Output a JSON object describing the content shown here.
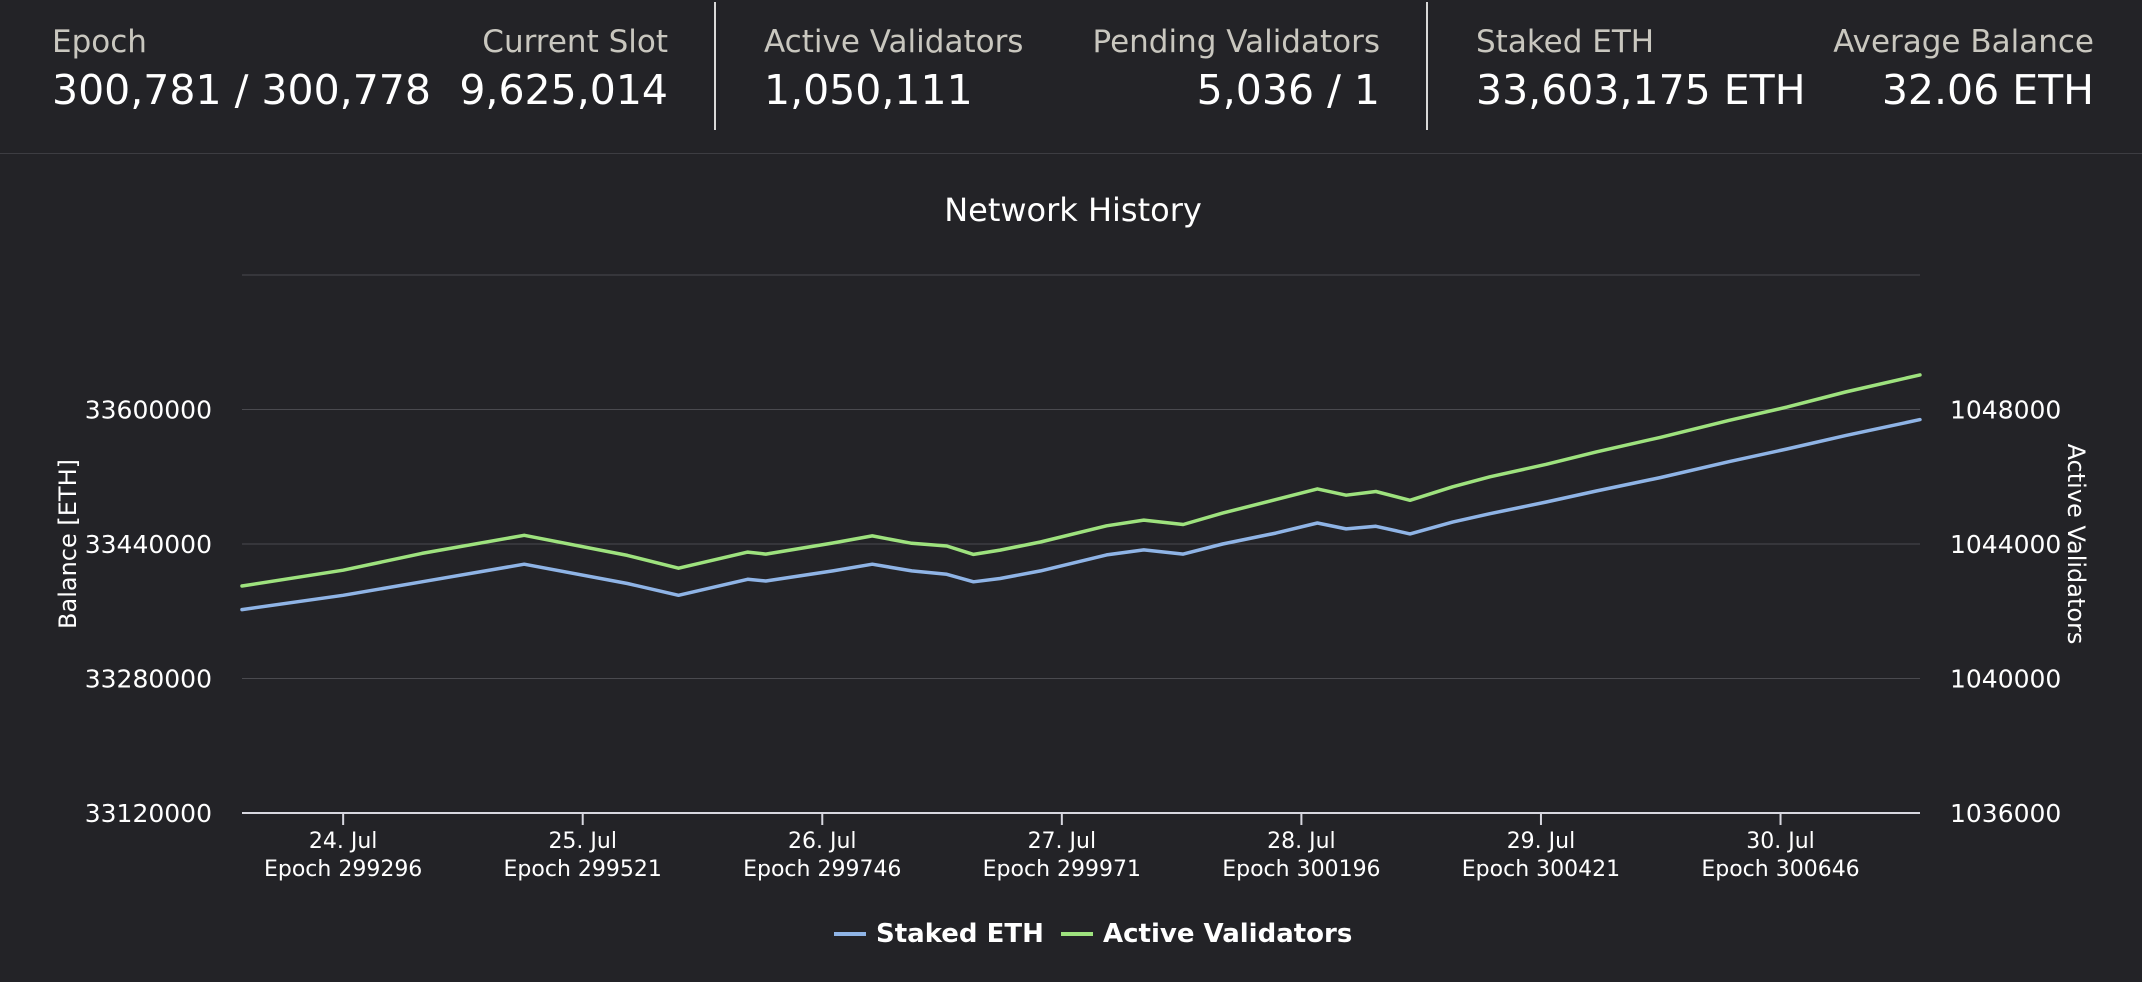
{
  "stats": {
    "epoch": {
      "label": "Epoch",
      "value": "300,781 / 300,778"
    },
    "current_slot": {
      "label": "Current Slot",
      "value": "9,625,014"
    },
    "active_validators": {
      "label": "Active Validators",
      "value": "1,050,111"
    },
    "pending_validators": {
      "label": "Pending Validators",
      "value": "5,036 / 1"
    },
    "staked_eth": {
      "label": "Staked ETH",
      "value": "33,603,175 ETH"
    },
    "average_balance": {
      "label": "Average Balance",
      "value": "32.06 ETH"
    }
  },
  "colors": {
    "background": "#232327",
    "staked_eth": "#8fb4e6",
    "active_validators": "#9ee27e",
    "grid": "#4a4a4f"
  },
  "chart_data": {
    "type": "line",
    "title": "Network History",
    "y_left": {
      "label": "Balance [ETH]",
      "ticks": [
        "33120000",
        "33280000",
        "33440000",
        "33600000"
      ],
      "range": [
        33120000,
        33760000
      ]
    },
    "y_right": {
      "label": "Active Validators",
      "ticks": [
        "1036000",
        "1040000",
        "1044000",
        "1048000"
      ],
      "range": [
        1036000,
        1052000
      ]
    },
    "x_ticks": [
      {
        "date": "24. Jul",
        "epoch": "Epoch 299296",
        "epoch_num": 299296
      },
      {
        "date": "25. Jul",
        "epoch": "Epoch 299521",
        "epoch_num": 299521
      },
      {
        "date": "26. Jul",
        "epoch": "Epoch 299746",
        "epoch_num": 299746
      },
      {
        "date": "27. Jul",
        "epoch": "Epoch 299971",
        "epoch_num": 299971
      },
      {
        "date": "28. Jul",
        "epoch": "Epoch 300196",
        "epoch_num": 300196
      },
      {
        "date": "29. Jul",
        "epoch": "Epoch 300421",
        "epoch_num": 300421
      },
      {
        "date": "30. Jul",
        "epoch": "Epoch 300646",
        "epoch_num": 300646
      }
    ],
    "x_range": [
      299201,
      300777
    ],
    "grid": true,
    "legend_position": "bottom-center",
    "series": [
      {
        "name": "Staked ETH",
        "axis": "left",
        "color": "#8fb4e6",
        "points": [
          [
            299201,
            33362000
          ],
          [
            299296,
            33379000
          ],
          [
            299370,
            33395000
          ],
          [
            299466,
            33416000
          ],
          [
            299563,
            33393000
          ],
          [
            299611,
            33379000
          ],
          [
            299676,
            33398000
          ],
          [
            299693,
            33396000
          ],
          [
            299756,
            33408000
          ],
          [
            299793,
            33416000
          ],
          [
            299830,
            33408000
          ],
          [
            299863,
            33404000
          ],
          [
            299888,
            33395000
          ],
          [
            299913,
            33399000
          ],
          [
            299951,
            33408000
          ],
          [
            300013,
            33427000
          ],
          [
            300048,
            33433000
          ],
          [
            300085,
            33428000
          ],
          [
            300122,
            33440000
          ],
          [
            300172,
            33453000
          ],
          [
            300211,
            33465000
          ],
          [
            300238,
            33458000
          ],
          [
            300266,
            33461000
          ],
          [
            300298,
            33452000
          ],
          [
            300338,
            33466000
          ],
          [
            300373,
            33476000
          ],
          [
            300426,
            33490000
          ],
          [
            300473,
            33503000
          ],
          [
            300533,
            33519000
          ],
          [
            300598,
            33538000
          ],
          [
            300652,
            33553000
          ],
          [
            300707,
            33569000
          ],
          [
            300777,
            33588000
          ]
        ]
      },
      {
        "name": "Active Validators",
        "axis": "right",
        "color": "#9ee27e",
        "points": [
          [
            299201,
            1042750
          ],
          [
            299296,
            1043220
          ],
          [
            299370,
            1043720
          ],
          [
            299466,
            1044260
          ],
          [
            299563,
            1043660
          ],
          [
            299611,
            1043280
          ],
          [
            299676,
            1043760
          ],
          [
            299693,
            1043700
          ],
          [
            299756,
            1044030
          ],
          [
            299793,
            1044240
          ],
          [
            299830,
            1044020
          ],
          [
            299863,
            1043940
          ],
          [
            299888,
            1043690
          ],
          [
            299913,
            1043820
          ],
          [
            299951,
            1044060
          ],
          [
            300013,
            1044540
          ],
          [
            300048,
            1044710
          ],
          [
            300085,
            1044580
          ],
          [
            300122,
            1044920
          ],
          [
            300172,
            1045320
          ],
          [
            300211,
            1045640
          ],
          [
            300238,
            1045450
          ],
          [
            300266,
            1045560
          ],
          [
            300298,
            1045300
          ],
          [
            300338,
            1045700
          ],
          [
            300373,
            1046000
          ],
          [
            300426,
            1046370
          ],
          [
            300473,
            1046740
          ],
          [
            300533,
            1047170
          ],
          [
            300598,
            1047680
          ],
          [
            300652,
            1048070
          ],
          [
            300707,
            1048520
          ],
          [
            300777,
            1049030
          ]
        ]
      }
    ]
  }
}
